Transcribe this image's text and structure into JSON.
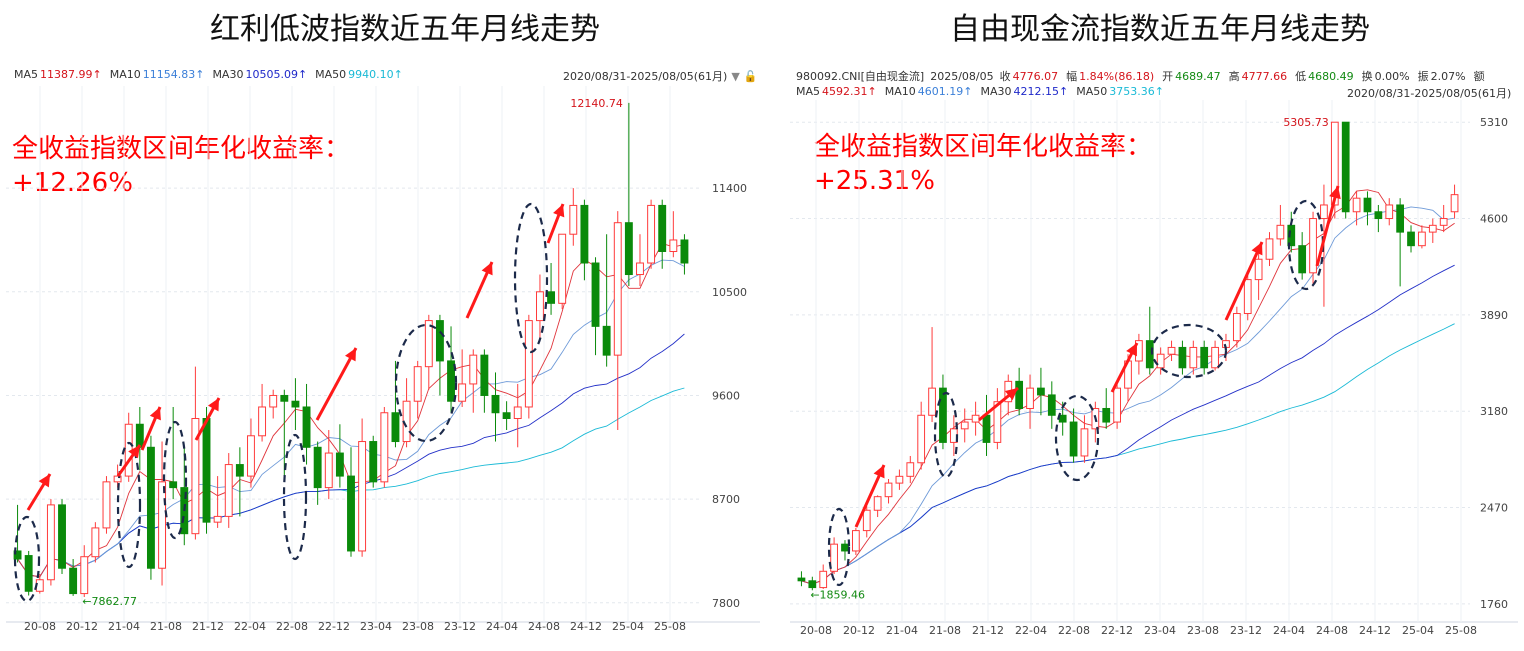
{
  "panels": [
    {
      "title": "红利低波指数近五年月线走势",
      "header_line1": [
        {
          "label": "MA5",
          "value": "11387.99↑",
          "color": "#d4141b"
        },
        {
          "label": "MA10",
          "value": "11154.83↑",
          "color": "#3b7fd8"
        },
        {
          "label": "MA30",
          "value": "10505.09↑",
          "color": "#1f29c9"
        },
        {
          "label": "MA50",
          "value": "9940.10↑",
          "color": "#1bbad6"
        }
      ],
      "range_label": "2020/08/31-2025/08/05(61月)",
      "annotation_line1": "全收益指数区间年化收益率：",
      "annotation_line2": "+12.26%",
      "high_label": "12140.74",
      "low_label": "7862.77"
    },
    {
      "title": "自由现金流指数近五年月线走势",
      "header_line1": [
        {
          "label": "980092.CNI[自由现金流]",
          "value": "",
          "color": "#333333"
        },
        {
          "label": "2025/08/05",
          "value": "",
          "color": "#333333"
        },
        {
          "label": "收",
          "value": "4776.07",
          "color": "#d4141b"
        },
        {
          "label": "幅",
          "value": "1.84%(86.18)",
          "color": "#d4141b"
        },
        {
          "label": "开",
          "value": "4689.47",
          "color": "#138a13"
        },
        {
          "label": "高",
          "value": "4777.66",
          "color": "#d4141b"
        },
        {
          "label": "低",
          "value": "4680.49",
          "color": "#138a13"
        },
        {
          "label": "换",
          "value": "0.00%",
          "color": "#333333"
        },
        {
          "label": "振",
          "value": "2.07%",
          "color": "#333333"
        },
        {
          "label": "额",
          "value": "",
          "color": "#333333"
        }
      ],
      "header_line2": [
        {
          "label": "MA5",
          "value": "4592.31↑",
          "color": "#d4141b"
        },
        {
          "label": "MA10",
          "value": "4601.19↑",
          "color": "#3b7fd8"
        },
        {
          "label": "MA30",
          "value": "4212.15↑",
          "color": "#1f29c9"
        },
        {
          "label": "MA50",
          "value": "3753.36↑",
          "color": "#1bbad6"
        }
      ],
      "range_label": "2020/08/31-2025/08/05(61月)",
      "annotation_line1": "全收益指数区间年化收益率：",
      "annotation_line2": "+25.31%",
      "high_label": "5305.73",
      "low_label": "1859.46"
    }
  ],
  "chart_data": [
    {
      "type": "candlestick",
      "title": "红利低波指数近五年月线走势",
      "x_tick_labels": [
        "20-08",
        "20-12",
        "21-04",
        "21-08",
        "21-12",
        "22-04",
        "22-08",
        "22-12",
        "23-04",
        "23-08",
        "23-12",
        "24-04",
        "24-08",
        "24-12",
        "25-04",
        "25-08"
      ],
      "y_ticks": [
        7800,
        8700,
        9600,
        10500,
        11400
      ],
      "ylim": [
        7720,
        12200
      ],
      "up_color": "#ff3b3b",
      "down_color": "#0a8a0a",
      "candles": [
        [
          8250,
          8180,
          8650,
          8150
        ],
        [
          8210,
          7900,
          8250,
          7863
        ],
        [
          7900,
          8000,
          8050,
          7880
        ],
        [
          8000,
          8650,
          8700,
          7950
        ],
        [
          8650,
          8100,
          8700,
          8050
        ],
        [
          8100,
          7880,
          8180,
          7860
        ],
        [
          7880,
          8200,
          8300,
          7850
        ],
        [
          8200,
          8450,
          8500,
          8150
        ],
        [
          8450,
          8850,
          8900,
          8400
        ],
        [
          8850,
          8900,
          9000,
          8800
        ],
        [
          8900,
          9350,
          9450,
          8850
        ],
        [
          9350,
          9150,
          9500,
          8950
        ],
        [
          9150,
          8100,
          9250,
          8000
        ],
        [
          8100,
          8850,
          9200,
          7950
        ],
        [
          8850,
          8800,
          9500,
          8700
        ],
        [
          8800,
          8400,
          9150,
          8300
        ],
        [
          8400,
          9400,
          9850,
          8350
        ],
        [
          9400,
          8500,
          9500,
          8400
        ],
        [
          8500,
          8550,
          8900,
          8450
        ],
        [
          8550,
          9000,
          9100,
          8450
        ],
        [
          9000,
          8900,
          9150,
          8550
        ],
        [
          8900,
          9250,
          9400,
          8800
        ],
        [
          9250,
          9500,
          9700,
          9200
        ],
        [
          9500,
          9600,
          9650,
          9400
        ],
        [
          9600,
          9550,
          9650,
          8850
        ],
        [
          9550,
          9500,
          9750,
          9300
        ],
        [
          9500,
          9150,
          9700,
          9000
        ],
        [
          9150,
          8800,
          9200,
          8650
        ],
        [
          8800,
          9100,
          9300,
          8700
        ],
        [
          9100,
          8900,
          9350,
          8800
        ],
        [
          8900,
          8250,
          9150,
          8200
        ],
        [
          8250,
          9200,
          9400,
          8200
        ],
        [
          9200,
          8850,
          9250,
          8800
        ],
        [
          8850,
          9450,
          9500,
          8800
        ],
        [
          9450,
          9200,
          9900,
          9150
        ],
        [
          9200,
          9550,
          9750,
          9150
        ],
        [
          9550,
          9850,
          9900,
          9400
        ],
        [
          9850,
          10250,
          10300,
          9650
        ],
        [
          10250,
          9900,
          10300,
          9600
        ],
        [
          9900,
          9550,
          10200,
          9450
        ],
        [
          9550,
          9700,
          10000,
          9500
        ],
        [
          9700,
          9950,
          10000,
          9450
        ],
        [
          9950,
          9600,
          10000,
          9450
        ],
        [
          9600,
          9450,
          9800,
          9200
        ],
        [
          9450,
          9400,
          9550,
          9300
        ],
        [
          9400,
          9500,
          9700,
          9150
        ],
        [
          9500,
          10250,
          10300,
          9400
        ],
        [
          10250,
          10500,
          10650,
          10100
        ],
        [
          10500,
          10400,
          10750,
          10300
        ],
        [
          10400,
          11000,
          11000,
          10350
        ],
        [
          11000,
          11250,
          11400,
          10900
        ],
        [
          11250,
          10750,
          11300,
          10600
        ],
        [
          10750,
          10200,
          10800,
          9950
        ],
        [
          10200,
          9950,
          11000,
          9850
        ],
        [
          9950,
          11100,
          11200,
          9300
        ],
        [
          11100,
          10650,
          12140,
          10550
        ],
        [
          10650,
          10750,
          11000,
          10550
        ],
        [
          10750,
          11250,
          11300,
          10700
        ],
        [
          11250,
          10850,
          11300,
          10700
        ],
        [
          10850,
          10950,
          11200,
          10800
        ],
        [
          10950,
          10750,
          11000,
          10650
        ]
      ]
    },
    {
      "type": "candlestick",
      "title": "自由现金流指数近五年月线走势",
      "x_tick_labels": [
        "20-08",
        "20-12",
        "21-04",
        "21-08",
        "21-12",
        "22-04",
        "22-08",
        "22-12",
        "23-04",
        "23-08",
        "23-12",
        "24-04",
        "24-08",
        "24-12",
        "25-04",
        "25-08"
      ],
      "y_ticks": [
        1760,
        2470,
        3180,
        3890,
        4600,
        5310
      ],
      "ylim": [
        1700,
        5400
      ],
      "up_color": "#ff3b3b",
      "down_color": "#0a8a0a",
      "candles": [
        [
          1950,
          1930,
          2000,
          1890
        ],
        [
          1930,
          1880,
          1960,
          1860
        ],
        [
          1880,
          2000,
          2050,
          1870
        ],
        [
          2000,
          2200,
          2250,
          1980
        ],
        [
          2200,
          2150,
          2230,
          2080
        ],
        [
          2150,
          2300,
          2320,
          2120
        ],
        [
          2300,
          2450,
          2480,
          2250
        ],
        [
          2450,
          2550,
          2560,
          2400
        ],
        [
          2550,
          2650,
          2680,
          2500
        ],
        [
          2650,
          2700,
          2750,
          2600
        ],
        [
          2700,
          2800,
          2850,
          2650
        ],
        [
          2800,
          3150,
          3250,
          2750
        ],
        [
          3150,
          3350,
          3800,
          3100
        ],
        [
          3350,
          2950,
          3450,
          2900
        ],
        [
          2950,
          3050,
          3150,
          2850
        ],
        [
          3050,
          3100,
          3200,
          2950
        ],
        [
          3100,
          3150,
          3250,
          3000
        ],
        [
          3150,
          2950,
          3300,
          2850
        ],
        [
          2950,
          3250,
          3350,
          2900
        ],
        [
          3250,
          3400,
          3450,
          3150
        ],
        [
          3400,
          3200,
          3500,
          3150
        ],
        [
          3200,
          3350,
          3450,
          3050
        ],
        [
          3350,
          3300,
          3500,
          3150
        ],
        [
          3300,
          3150,
          3400,
          3050
        ],
        [
          3150,
          3100,
          3250,
          3000
        ],
        [
          3100,
          2850,
          3200,
          2800
        ],
        [
          2850,
          3050,
          3150,
          2800
        ],
        [
          3050,
          3200,
          3250,
          2950
        ],
        [
          3200,
          3100,
          3350,
          3050
        ],
        [
          3100,
          3350,
          3400,
          3050
        ],
        [
          3350,
          3550,
          3600,
          3250
        ],
        [
          3550,
          3700,
          3750,
          3450
        ],
        [
          3700,
          3500,
          3950,
          3450
        ],
        [
          3500,
          3600,
          3650,
          3450
        ],
        [
          3600,
          3650,
          3700,
          3550
        ],
        [
          3650,
          3500,
          3700,
          3450
        ],
        [
          3500,
          3650,
          3700,
          3450
        ],
        [
          3650,
          3500,
          3700,
          3450
        ],
        [
          3500,
          3650,
          3700,
          3480
        ],
        [
          3650,
          3700,
          3750,
          3550
        ],
        [
          3700,
          3900,
          3950,
          3650
        ],
        [
          3900,
          4150,
          4200,
          3850
        ],
        [
          4150,
          4300,
          4350,
          4000
        ],
        [
          4300,
          4450,
          4500,
          4250
        ],
        [
          4450,
          4550,
          4700,
          4400
        ],
        [
          4550,
          4400,
          4650,
          4350
        ],
        [
          4400,
          4200,
          4500,
          4150
        ],
        [
          4200,
          4600,
          4650,
          4100
        ],
        [
          4600,
          4700,
          4850,
          3950
        ],
        [
          4700,
          5310,
          5310,
          4600
        ],
        [
          5310,
          4650,
          5310,
          4600
        ],
        [
          4650,
          4750,
          4800,
          4550
        ],
        [
          4750,
          4650,
          4800,
          4550
        ],
        [
          4650,
          4600,
          4700,
          4500
        ],
        [
          4600,
          4700,
          4750,
          4550
        ],
        [
          4700,
          4500,
          4750,
          4100
        ],
        [
          4500,
          4400,
          4550,
          4350
        ],
        [
          4400,
          4500,
          4550,
          4380
        ],
        [
          4500,
          4550,
          4600,
          4420
        ],
        [
          4550,
          4600,
          4700,
          4500
        ],
        [
          4650,
          4776,
          4850,
          4600
        ]
      ]
    }
  ]
}
